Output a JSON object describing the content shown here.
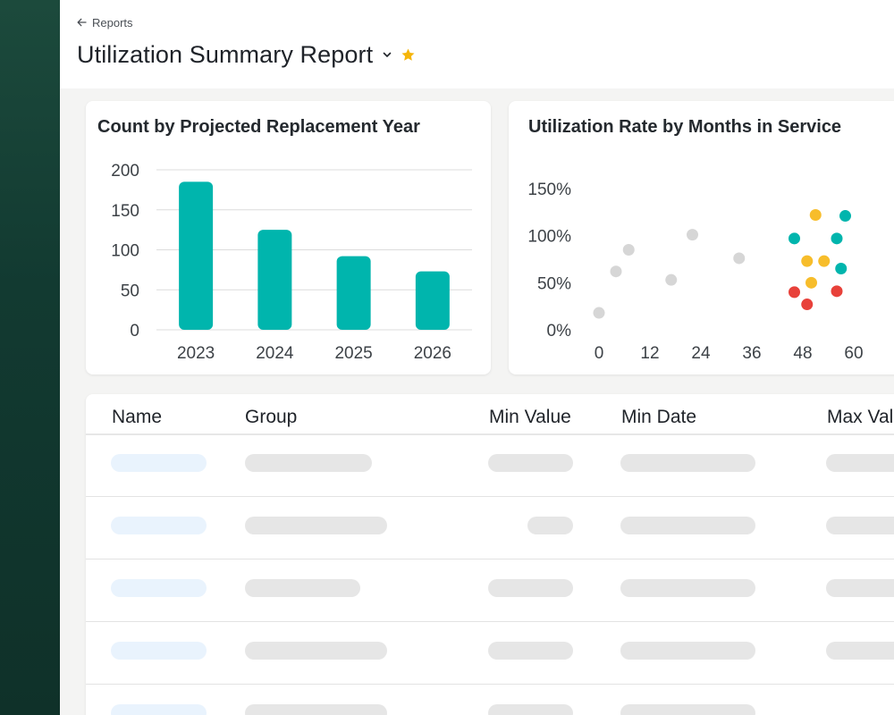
{
  "breadcrumb": {
    "label": "Reports",
    "icon": "arrow-left-icon"
  },
  "header": {
    "title": "Utilization Summary Report",
    "dropdown_icon": "chevron-down-icon",
    "favorite_icon": "star-icon",
    "favorite_color": "#f5b50a"
  },
  "colors": {
    "sidebar": "#123a31",
    "teal": "#00b5ad",
    "yellow": "#f7bd2b",
    "red": "#e8413a",
    "grey": "#d6d6d6"
  },
  "bar_chart": {
    "chart_data": {
      "type": "bar",
      "title": "Count by Projected Replacement Year",
      "categories": [
        "2023",
        "2024",
        "2025",
        "2026"
      ],
      "values": [
        185,
        125,
        92,
        73
      ],
      "ylim": [
        0,
        200
      ],
      "yticks": [
        "0",
        "50",
        "100",
        "150",
        "200"
      ],
      "grid": true,
      "color": "#00b5ad"
    }
  },
  "scatter_chart": {
    "chart_data": {
      "type": "scatter",
      "title": "Utilization Rate by Months in Service",
      "xticks": [
        "0",
        "12",
        "24",
        "36",
        "48",
        "60"
      ],
      "xlim": [
        0,
        60
      ],
      "yticks": [
        "0%",
        "50%",
        "100%",
        "150%"
      ],
      "ylim": [
        0,
        150
      ],
      "grid": false,
      "points": [
        {
          "x": 0,
          "y": 18,
          "color": "#d6d6d6"
        },
        {
          "x": 4,
          "y": 62,
          "color": "#d6d6d6"
        },
        {
          "x": 7,
          "y": 85,
          "color": "#d6d6d6"
        },
        {
          "x": 17,
          "y": 53,
          "color": "#d6d6d6"
        },
        {
          "x": 22,
          "y": 101,
          "color": "#d6d6d6"
        },
        {
          "x": 33,
          "y": 76,
          "color": "#d6d6d6"
        },
        {
          "x": 46,
          "y": 97,
          "color": "#00b5ad"
        },
        {
          "x": 49,
          "y": 73,
          "color": "#f7bd2b"
        },
        {
          "x": 51,
          "y": 122,
          "color": "#f7bd2b"
        },
        {
          "x": 53,
          "y": 73,
          "color": "#f7bd2b"
        },
        {
          "x": 50,
          "y": 50,
          "color": "#f7bd2b"
        },
        {
          "x": 46,
          "y": 40,
          "color": "#e8413a"
        },
        {
          "x": 49,
          "y": 27,
          "color": "#e8413a"
        },
        {
          "x": 56,
          "y": 97,
          "color": "#00b5ad"
        },
        {
          "x": 58,
          "y": 121,
          "color": "#00b5ad"
        },
        {
          "x": 57,
          "y": 65,
          "color": "#00b5ad"
        },
        {
          "x": 56,
          "y": 41,
          "color": "#e8413a"
        }
      ]
    }
  },
  "table": {
    "columns": [
      "Name",
      "Group",
      "Min Value",
      "Min Date",
      "Max Value"
    ],
    "row_count": 5
  }
}
